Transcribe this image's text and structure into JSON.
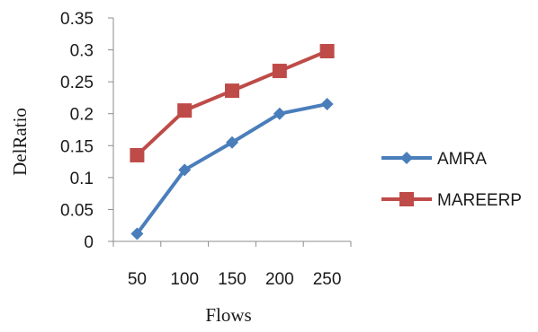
{
  "chart_data": {
    "type": "line",
    "title": "",
    "xlabel": "Flows",
    "ylabel": "DelRatio",
    "categories": [
      "50",
      "100",
      "150",
      "200",
      "250"
    ],
    "ylim": [
      0,
      0.35
    ],
    "yticks": [
      "0",
      "0.05",
      "0.1",
      "0.15",
      "0.2",
      "0.25",
      "0.3",
      "0.35"
    ],
    "grid": false,
    "legend_position": "right",
    "series": [
      {
        "name": "AMRA",
        "values": [
          0.012,
          0.112,
          0.155,
          0.2,
          0.215
        ],
        "color": "#4a7ebb",
        "marker": "diamond"
      },
      {
        "name": "MAREERP",
        "values": [
          0.135,
          0.205,
          0.236,
          0.267,
          0.298
        ],
        "color": "#be4b48",
        "marker": "square"
      }
    ]
  }
}
